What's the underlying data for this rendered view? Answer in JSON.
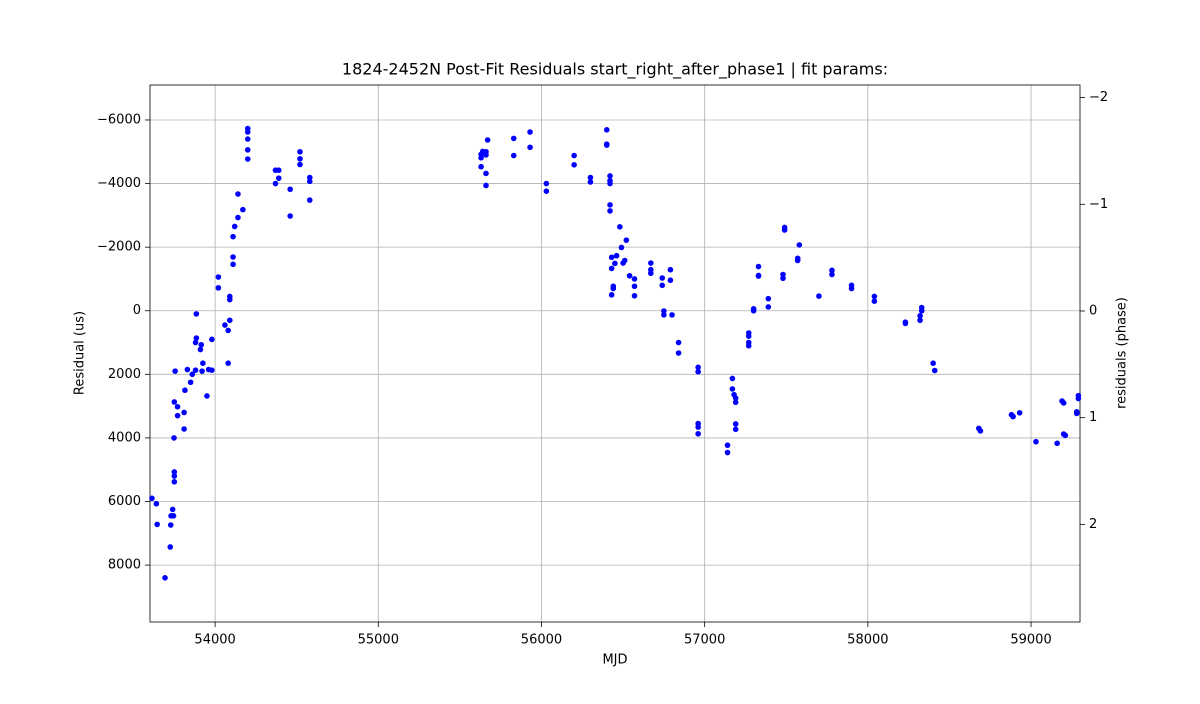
{
  "chart_data": {
    "type": "scatter",
    "title": "1824-2452N Post-Fit Residuals start_right_after_phase1 | fit params:",
    "x_label": "MJD",
    "y_label": "Residual (us)",
    "y2_label": "residuals (phase)",
    "color": "#0000ff",
    "grid": true,
    "xlim": [
      53601,
      59300
    ],
    "xticks": [
      54000,
      55000,
      56000,
      57000,
      58000,
      59000
    ],
    "ylim": [
      9790,
      -7100
    ],
    "yticks": [
      {
        "value": -6000,
        "label": "−6000"
      },
      {
        "value": -4000,
        "label": "−4000"
      },
      {
        "value": -2000,
        "label": "−2000"
      },
      0,
      2000,
      4000,
      6000,
      8000
    ],
    "y2lim": [
      2.915,
      -2.118
    ],
    "y2ticks": [
      {
        "value": -2,
        "label": "−2"
      },
      {
        "value": -1,
        "label": "−1"
      },
      0,
      1,
      2
    ],
    "x": [
      53613,
      53640,
      53645,
      53693,
      53725,
      53728,
      53730,
      53740,
      53745,
      53750,
      53750,
      53750,
      53748,
      53750,
      53755,
      53770,
      53770,
      53810,
      53810,
      53815,
      53830,
      53850,
      53860,
      53880,
      53880,
      53885,
      53885,
      53910,
      53915,
      53920,
      53925,
      53950,
      53960,
      53980,
      53980,
      54020,
      54020,
      54060,
      54080,
      54080,
      54090,
      54090,
      54090,
      54110,
      54110,
      54110,
      54120,
      54140,
      54140,
      54170,
      54200,
      54200,
      54200,
      54200,
      54200,
      54370,
      54370,
      54390,
      54390,
      54460,
      54460,
      54520,
      54520,
      54520,
      54580,
      54580,
      54580,
      55630,
      55630,
      55630,
      55640,
      55660,
      55660,
      55660,
      55660,
      55670,
      55830,
      55830,
      55930,
      55930,
      56030,
      56030,
      56200,
      56200,
      56300,
      56300,
      56400,
      56400,
      56400,
      56420,
      56420,
      56420,
      56420,
      56420,
      56430,
      56430,
      56430,
      56440,
      56440,
      56450,
      56460,
      56480,
      56490,
      56500,
      56510,
      56520,
      56540,
      56570,
      56570,
      56570,
      56670,
      56670,
      56670,
      56740,
      56740,
      56750,
      56750,
      56790,
      56790,
      56800,
      56840,
      56840,
      56960,
      56960,
      56960,
      56960,
      56960,
      57140,
      57140,
      57170,
      57170,
      57180,
      57190,
      57190,
      57190,
      57190,
      57270,
      57270,
      57270,
      57270,
      57300,
      57300,
      57330,
      57330,
      57330,
      57390,
      57390,
      57480,
      57480,
      57490,
      57490,
      57570,
      57570,
      57580,
      57700,
      57780,
      57780,
      57900,
      57900,
      58040,
      58040,
      58230,
      58230,
      58320,
      58320,
      58330,
      58330,
      58400,
      58410,
      58680,
      58690,
      58880,
      58890,
      58930,
      59030,
      59160,
      59190,
      59200,
      59200,
      59210,
      59280,
      59280,
      59290,
      59290
    ],
    "values": [
      5900,
      6070,
      6720,
      8400,
      7430,
      6740,
      6450,
      6250,
      6450,
      5070,
      5200,
      5380,
      4000,
      2870,
      1900,
      3020,
      3300,
      3720,
      3200,
      2500,
      1850,
      2250,
      2000,
      1870,
      1000,
      860,
      100,
      1220,
      1070,
      1900,
      1650,
      2680,
      1850,
      1870,
      900,
      -1060,
      -720,
      450,
      1650,
      620,
      300,
      -350,
      -450,
      -1460,
      -1690,
      -2330,
      -2650,
      -2930,
      -3670,
      -3180,
      -4770,
      -5060,
      -5400,
      -5620,
      -5730,
      -4000,
      -4420,
      -4420,
      -4170,
      -2980,
      -3820,
      -4600,
      -4780,
      -5000,
      -3480,
      -4070,
      -4190,
      -4530,
      -4810,
      -4920,
      -5010,
      -3940,
      -4320,
      -4900,
      -5000,
      -5370,
      -4880,
      -5420,
      -5140,
      -5620,
      -3760,
      -4000,
      -4590,
      -4880,
      -4050,
      -4190,
      -5210,
      -5240,
      -5690,
      -4000,
      -4090,
      -4240,
      -3140,
      -3330,
      -1330,
      -1680,
      -500,
      -700,
      -770,
      -1490,
      -1730,
      -2640,
      -1990,
      -1500,
      -1580,
      -2220,
      -1100,
      -1000,
      -770,
      -470,
      -1180,
      -1290,
      -1500,
      -1030,
      -800,
      10,
      130,
      -1290,
      -960,
      130,
      1000,
      1330,
      1780,
      1920,
      3550,
      3660,
      3870,
      4230,
      4460,
      2130,
      2460,
      2640,
      2750,
      2880,
      3560,
      3730,
      700,
      800,
      1000,
      1100,
      0,
      -60,
      -1090,
      -1110,
      -1390,
      -120,
      -380,
      -1020,
      -1140,
      -2540,
      -2620,
      -1580,
      -1650,
      -2070,
      -460,
      -1140,
      -1270,
      -700,
      -800,
      -300,
      -450,
      360,
      400,
      300,
      160,
      0,
      -100,
      1650,
      1880,
      3700,
      3780,
      3270,
      3330,
      3210,
      4120,
      4170,
      2840,
      2900,
      3880,
      3920,
      3180,
      3230,
      2670,
      2760
    ]
  }
}
